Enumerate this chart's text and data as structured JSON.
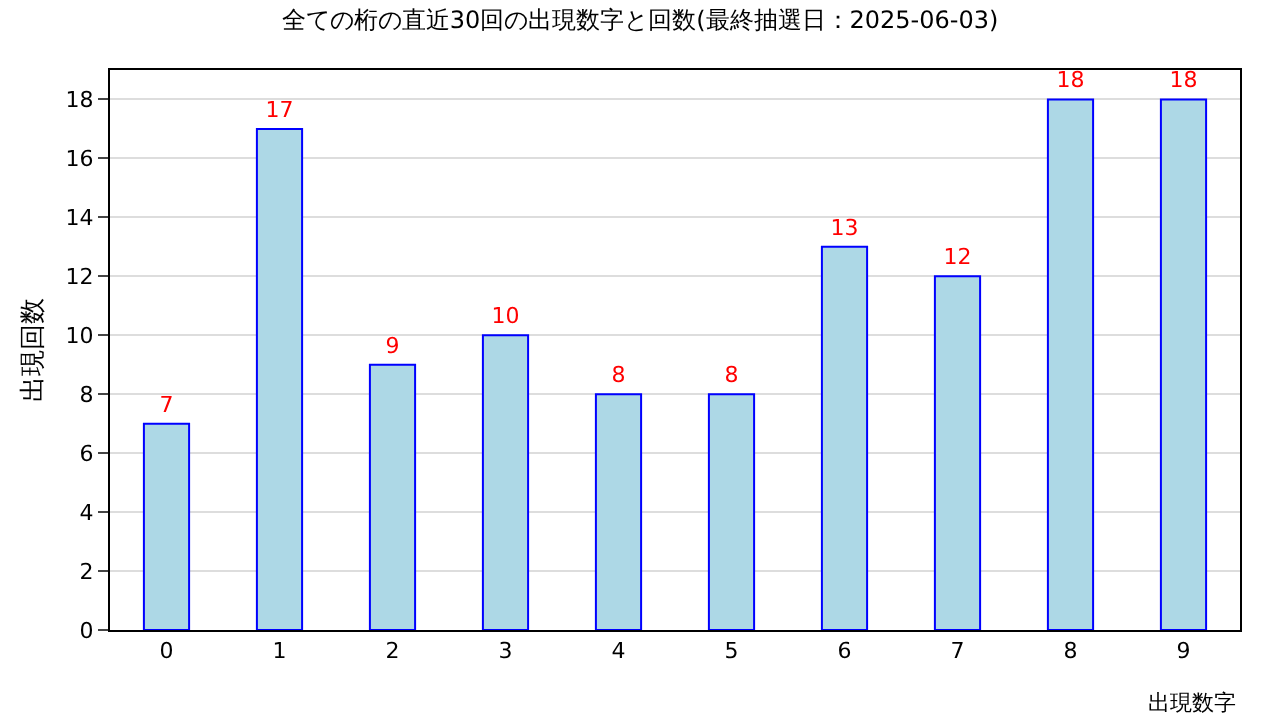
{
  "chart_data": {
    "type": "bar",
    "title": "全ての桁の直近30回の出現数字と回数(最終抽選日：2025-06-03)",
    "xlabel": "出現数字",
    "ylabel": "出現回数",
    "categories": [
      "0",
      "1",
      "2",
      "3",
      "4",
      "5",
      "6",
      "7",
      "8",
      "9"
    ],
    "values": [
      7,
      17,
      9,
      10,
      8,
      8,
      13,
      12,
      18,
      18
    ],
    "color": "#add8e6",
    "ylim": [
      0,
      19
    ],
    "yticks": [
      0,
      2,
      4,
      6,
      8,
      10,
      12,
      14,
      16,
      18
    ],
    "grid": "y",
    "data_labels": true
  }
}
